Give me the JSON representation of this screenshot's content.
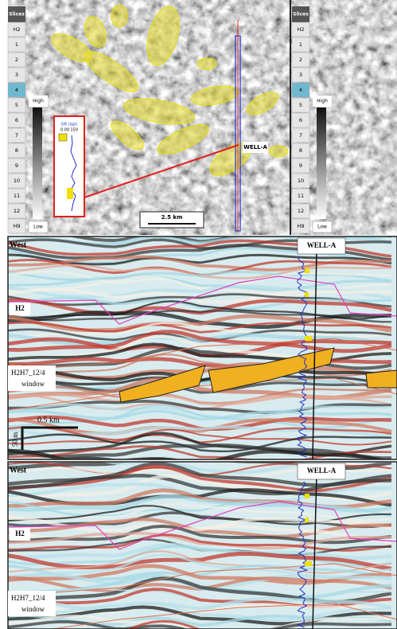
{
  "map_panel": {
    "slices_title": "Slices",
    "slices": [
      "H2",
      "1",
      "2",
      "3",
      "4",
      "5",
      "6",
      "7",
      "8",
      "9",
      "10",
      "11",
      "12",
      "H9"
    ],
    "high_label": "High",
    "low_label": "Low",
    "log_title": "GR (api)",
    "log_min": "0.00",
    "log_max": "150",
    "well_label": "WELL-A",
    "scale_bar": "2.5 km"
  },
  "sections": [
    {
      "direction": "West",
      "well_label": "WELL-A",
      "horizon": "H2",
      "window_line1": "H2H7_12/4",
      "window_line2": "window",
      "scale_horizontal": "0.5 km",
      "scale_vertical": "50 m"
    },
    {
      "direction": "West",
      "well_label": "WELL-A",
      "horizon": "H2",
      "window_line1": "H2H7_12/4",
      "window_line2": "window"
    }
  ]
}
